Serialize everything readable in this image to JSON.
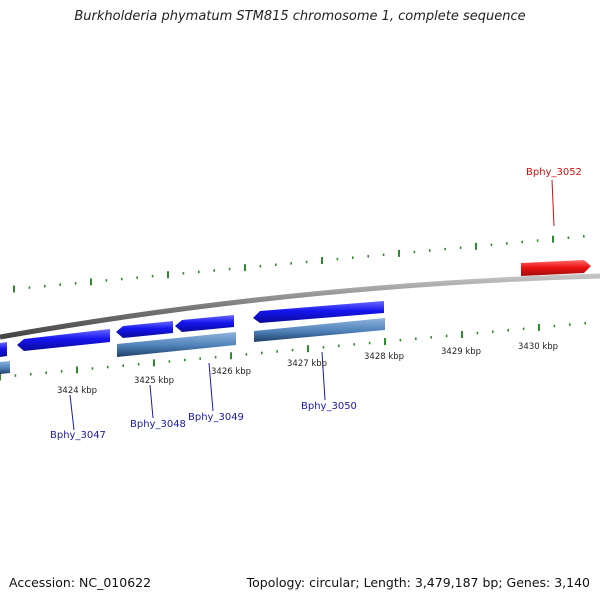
{
  "title": "Burkholderia phymatum STM815 chromosome 1, complete sequence",
  "footer": {
    "accession": "Accession: NC_010622",
    "summary": "Topology: circular; Length: 3,479,187 bp; Genes: 3,140"
  },
  "colors": {
    "backbone": "#7a7a7a",
    "tick": "#2e8b2e",
    "forward_gene": "#1515ee",
    "reverse_gene": "#e81818",
    "cds_feature": "#4f81b8",
    "label_forward": "#1a1aaa",
    "label_reverse": "#d01010"
  },
  "scale": {
    "unit": "kbp",
    "labels": [
      "3424 kbp",
      "3425 kbp",
      "3426 kbp",
      "3427 kbp",
      "3428 kbp",
      "3429 kbp",
      "3430 kbp"
    ]
  },
  "gene_labels": [
    {
      "name": "Bphy_3047",
      "strand": "forward"
    },
    {
      "name": "Bphy_3048",
      "strand": "forward"
    },
    {
      "name": "Bphy_3049",
      "strand": "forward"
    },
    {
      "name": "Bphy_3050",
      "strand": "forward"
    },
    {
      "name": "Bphy_3052",
      "strand": "reverse"
    }
  ]
}
